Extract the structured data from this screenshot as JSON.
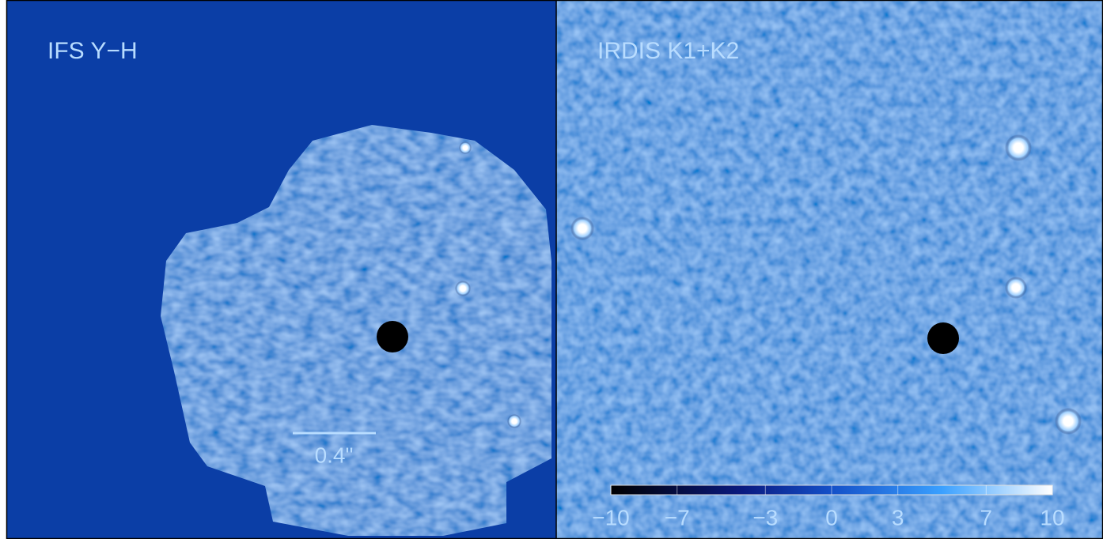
{
  "panels": [
    {
      "label": "IFS Y−H"
    },
    {
      "label": "IRDIS K1+K2"
    }
  ],
  "scale_bar": {
    "label": "0.4\""
  },
  "colorbar": {
    "lim": [
      -10,
      10
    ],
    "ticks": [
      {
        "value": -10,
        "label": "−10"
      },
      {
        "value": -7,
        "label": "−7"
      },
      {
        "value": -3,
        "label": "−3"
      },
      0,
      3,
      7,
      10
    ]
  }
}
